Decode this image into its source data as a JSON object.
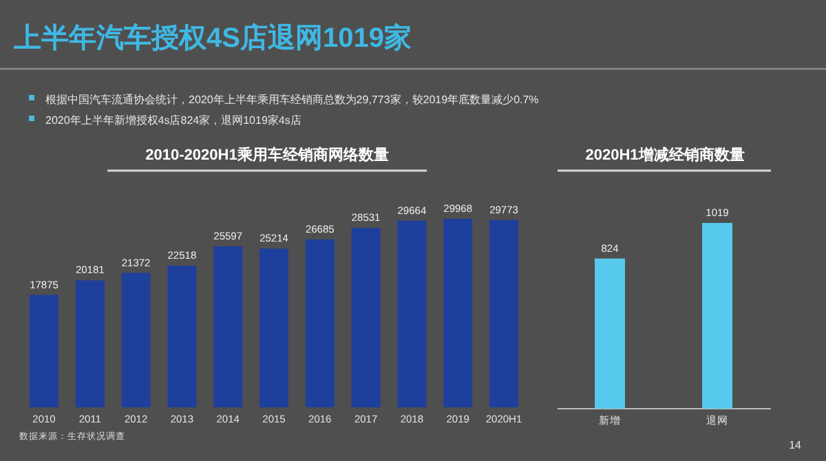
{
  "chart_data": [
    {
      "type": "other",
      "title": "上半年汽车授权4S店退网1019家",
      "annotations": [
        "根据中国汽车流通协会统计，2020年上半年乘用车经销商总数为29,773家，较2019年底数量减少0.7%",
        "2020年上半年新增授权4s店824家，退网1019家4s店"
      ]
    },
    {
      "type": "bar",
      "title": "2010-2020H1乘用车经销商网络数量",
      "categories": [
        "2010",
        "2011",
        "2012",
        "2013",
        "2014",
        "2015",
        "2016",
        "2017",
        "2018",
        "2019",
        "2020H1"
      ],
      "values": [
        17875,
        20181,
        21372,
        22518,
        25597,
        25214,
        26685,
        28531,
        29664,
        29968,
        29773
      ],
      "color": "#1f3f9c",
      "data_labels": true,
      "annotations": [
        "数据来源：生存状况调查"
      ]
    },
    {
      "type": "bar",
      "title": "2020H1增减经销商数量",
      "categories": [
        "新增",
        "退网"
      ],
      "values": [
        824,
        1019
      ],
      "color": "#56c9ec",
      "data_labels": true,
      "annotations": [
        "14"
      ]
    }
  ]
}
